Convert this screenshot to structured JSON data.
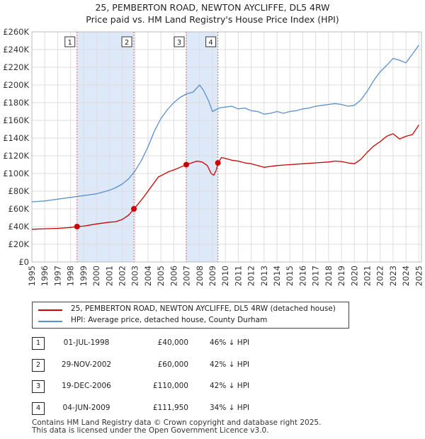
{
  "header": {
    "title_line1": "25, PEMBERTON ROAD, NEWTON AYCLIFFE, DL5 4RW",
    "title_line2": "Price paid vs. HM Land Registry's House Price Index (HPI)"
  },
  "chart_data": {
    "type": "line",
    "ylim": [
      0,
      260000
    ],
    "xlim": [
      1995,
      2025.2
    ],
    "y_ticks": [
      0,
      20000,
      40000,
      60000,
      80000,
      100000,
      120000,
      140000,
      160000,
      180000,
      200000,
      220000,
      240000,
      260000
    ],
    "y_tick_labels": [
      "£0",
      "£20K",
      "£40K",
      "£60K",
      "£80K",
      "£100K",
      "£120K",
      "£140K",
      "£160K",
      "£180K",
      "£200K",
      "£220K",
      "£240K",
      "£260K"
    ],
    "x_ticks": [
      "1995",
      "1996",
      "1997",
      "1998",
      "1999",
      "2000",
      "2001",
      "2002",
      "2003",
      "2004",
      "2005",
      "2006",
      "2007",
      "2008",
      "2009",
      "2010",
      "2011",
      "2012",
      "2013",
      "2014",
      "2015",
      "2016",
      "2017",
      "2018",
      "2019",
      "2020",
      "2021",
      "2022",
      "2023",
      "2024",
      "2025"
    ],
    "grid": true,
    "colors": {
      "property": "#cc0000",
      "hpi": "#5b8fc9",
      "shade": "#dde8f8",
      "marker_line": "#e06666"
    },
    "series": [
      {
        "name": "25, PEMBERTON ROAD, NEWTON AYCLIFFE, DL5 4RW (detached house)",
        "x": [
          1995,
          1996,
          1997,
          1998,
          1998.5,
          1999,
          2000,
          2001,
          2001.5,
          2002,
          2002.5,
          2002.91,
          2003.2,
          2003.6,
          2004,
          2004.4,
          2004.8,
          2005.2,
          2005.6,
          2006,
          2006.5,
          2006.97,
          2007.4,
          2007.8,
          2008.2,
          2008.6,
          2008.9,
          2009.1,
          2009.3,
          2009.42,
          2009.7,
          2010,
          2010.5,
          2011,
          2011.5,
          2012,
          2012.5,
          2013,
          2013.5,
          2014,
          2014.5,
          2015,
          2016,
          2017,
          2018,
          2018.5,
          2019,
          2019.5,
          2020,
          2020.5,
          2021,
          2021.5,
          2022,
          2022.5,
          2023,
          2023.5,
          2024,
          2024.5,
          2025
        ],
        "values": [
          37000,
          37500,
          38000,
          39000,
          40000,
          40500,
          43000,
          45000,
          45500,
          48000,
          53000,
          60000,
          65000,
          72000,
          80000,
          88000,
          96000,
          99000,
          102000,
          104000,
          107000,
          110000,
          112000,
          114000,
          113000,
          109000,
          100000,
          98000,
          104000,
          111950,
          118000,
          117000,
          115000,
          114000,
          112000,
          111000,
          109000,
          107000,
          108000,
          109000,
          109500,
          110000,
          111000,
          112000,
          113000,
          114000,
          113500,
          112000,
          111000,
          116000,
          124000,
          131000,
          136000,
          142000,
          145000,
          139000,
          142000,
          144000,
          155000
        ]
      },
      {
        "name": "HPI: Average price, detached house, County Durham",
        "x": [
          1995,
          1995.5,
          1996,
          1996.5,
          1997,
          1997.5,
          1998,
          1998.5,
          1999,
          1999.5,
          2000,
          2000.5,
          2001,
          2001.5,
          2002,
          2002.5,
          2003,
          2003.5,
          2004,
          2004.5,
          2005,
          2005.5,
          2006,
          2006.5,
          2007,
          2007.5,
          2008,
          2008.3,
          2008.7,
          2009,
          2009.5,
          2010,
          2010.5,
          2011,
          2011.5,
          2012,
          2012.5,
          2013,
          2013.5,
          2014,
          2014.5,
          2015,
          2015.5,
          2016,
          2016.5,
          2017,
          2017.5,
          2018,
          2018.5,
          2019,
          2019.5,
          2020,
          2020.5,
          2021,
          2021.5,
          2022,
          2022.5,
          2023,
          2023.5,
          2024,
          2024.5,
          2025
        ],
        "values": [
          68000,
          68500,
          69000,
          70000,
          71000,
          72000,
          73000,
          74000,
          75000,
          76000,
          77000,
          79000,
          81000,
          84000,
          88000,
          94000,
          103000,
          115000,
          130000,
          148000,
          162000,
          172000,
          180000,
          186000,
          190000,
          192000,
          200000,
          194000,
          182000,
          170000,
          174000,
          175000,
          176000,
          173000,
          174000,
          171000,
          170000,
          167000,
          168000,
          170000,
          168000,
          170000,
          171000,
          173000,
          174000,
          176000,
          177000,
          178000,
          179000,
          178000,
          176000,
          177000,
          183000,
          193000,
          205000,
          215000,
          222000,
          230000,
          228000,
          225000,
          235000,
          245000
        ]
      }
    ],
    "markers": [
      {
        "label": "1",
        "x": 1998.5,
        "y": 40000
      },
      {
        "label": "2",
        "x": 2002.91,
        "y": 60000
      },
      {
        "label": "3",
        "x": 2006.97,
        "y": 110000
      },
      {
        "label": "4",
        "x": 2009.42,
        "y": 111950
      }
    ],
    "shaded_ranges": [
      [
        1998.5,
        2002.91
      ],
      [
        2006.97,
        2009.42
      ]
    ]
  },
  "legend": {
    "property_label": "25, PEMBERTON ROAD, NEWTON AYCLIFFE, DL5 4RW (detached house)",
    "hpi_label": "HPI: Average price, detached house, County Durham"
  },
  "transactions": [
    {
      "num": "1",
      "date": "01-JUL-1998",
      "price": "£40,000",
      "hpi": "46% ↓ HPI"
    },
    {
      "num": "2",
      "date": "29-NOV-2002",
      "price": "£60,000",
      "hpi": "42% ↓ HPI"
    },
    {
      "num": "3",
      "date": "19-DEC-2006",
      "price": "£110,000",
      "hpi": "42% ↓ HPI"
    },
    {
      "num": "4",
      "date": "04-JUN-2009",
      "price": "£111,950",
      "hpi": "34% ↓ HPI"
    }
  ],
  "footer": {
    "line1": "Contains HM Land Registry data © Crown copyright and database right 2025.",
    "line2": "This data is licensed under the Open Government Licence v3.0."
  }
}
